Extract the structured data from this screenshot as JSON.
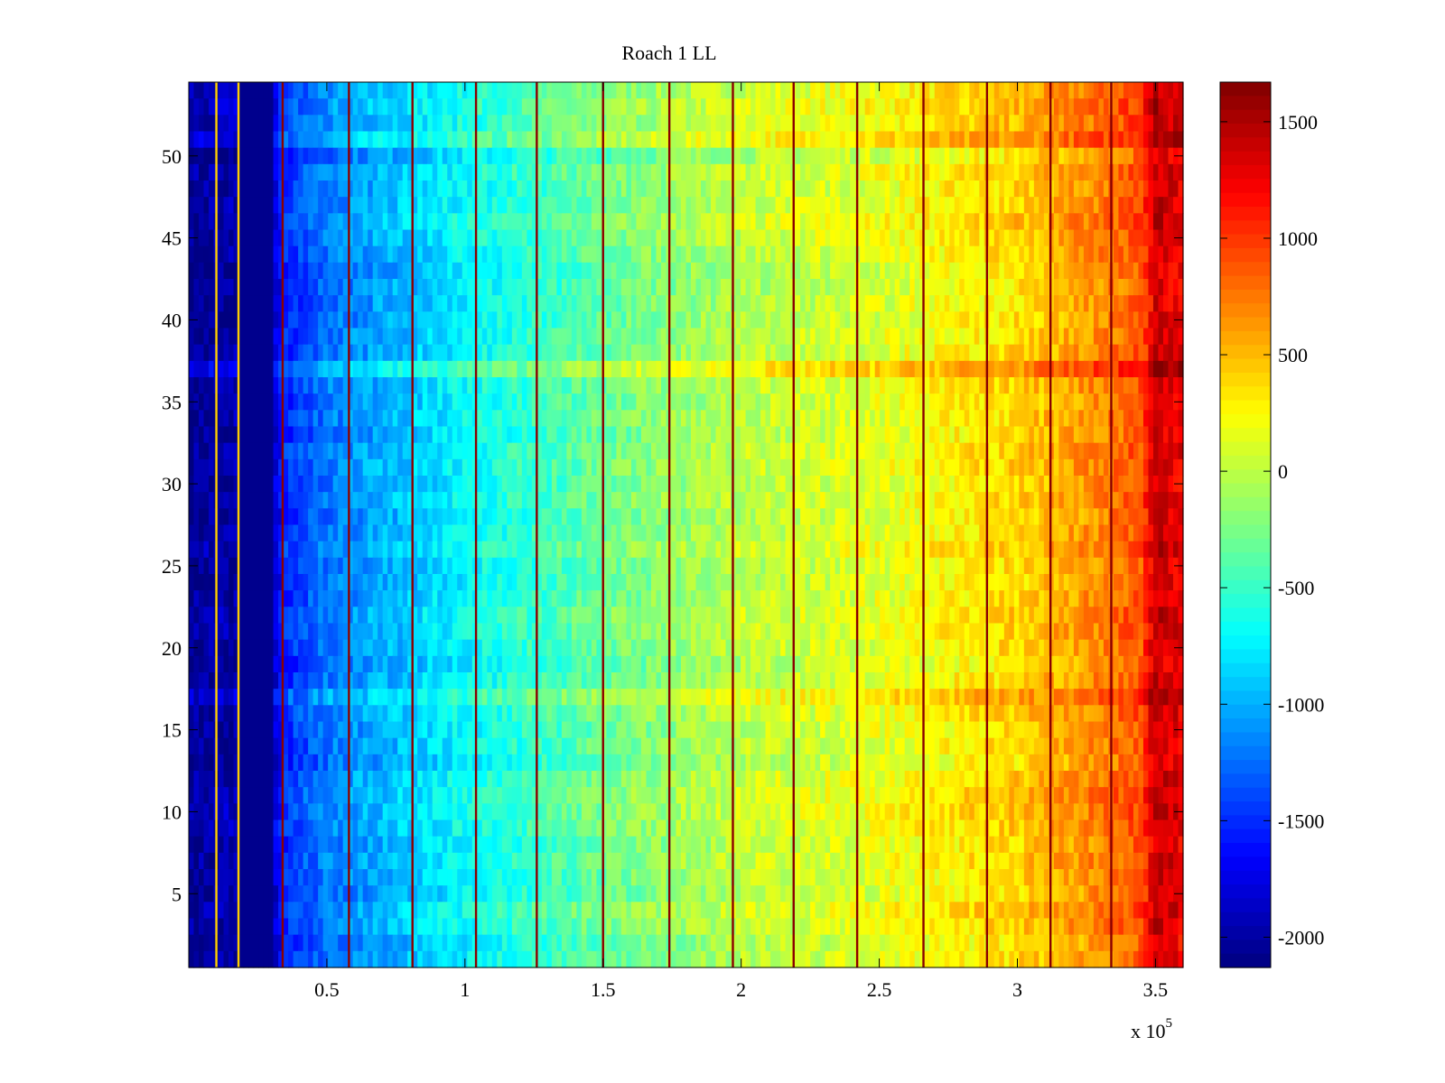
{
  "chart_data": {
    "type": "heatmap",
    "title": "Roach 1 LL",
    "xlabel": "",
    "ylabel": "",
    "x_multiplier_label": {
      "base": "x 10",
      "exponent": "5"
    },
    "xlim": [
      0,
      3.6
    ],
    "ylim": [
      0.5,
      54.5
    ],
    "x_ticks": [
      {
        "value": 0.5,
        "label": "0.5"
      },
      {
        "value": 1,
        "label": "1"
      },
      {
        "value": 1.5,
        "label": "1.5"
      },
      {
        "value": 2,
        "label": "2"
      },
      {
        "value": 2.5,
        "label": "2.5"
      },
      {
        "value": 3,
        "label": "3"
      },
      {
        "value": 3.5,
        "label": "3.5"
      }
    ],
    "y_ticks": [
      {
        "value": 5,
        "label": "5"
      },
      {
        "value": 10,
        "label": "10"
      },
      {
        "value": 15,
        "label": "15"
      },
      {
        "value": 20,
        "label": "20"
      },
      {
        "value": 25,
        "label": "25"
      },
      {
        "value": 30,
        "label": "30"
      },
      {
        "value": 35,
        "label": "35"
      },
      {
        "value": 40,
        "label": "40"
      },
      {
        "value": 45,
        "label": "45"
      },
      {
        "value": 50,
        "label": "50"
      }
    ],
    "n_rows": 54,
    "colormap": "jet",
    "colorbar": {
      "clim": [
        -2130,
        1670
      ],
      "ticks": [
        {
          "value": 1500,
          "label": "1500"
        },
        {
          "value": 1000,
          "label": "1000"
        },
        {
          "value": 500,
          "label": "500"
        },
        {
          "value": 0,
          "label": "0"
        },
        {
          "value": -500,
          "label": "-500"
        },
        {
          "value": -1000,
          "label": "-1000"
        },
        {
          "value": -1500,
          "label": "-1500"
        },
        {
          "value": -2000,
          "label": "-2000"
        }
      ]
    },
    "value_trend_by_x": [
      {
        "x": 0.0,
        "value": -2050
      },
      {
        "x": 0.3,
        "value": -1900
      },
      {
        "x": 0.35,
        "value": -1500
      },
      {
        "x": 0.5,
        "value": -1200
      },
      {
        "x": 0.8,
        "value": -900
      },
      {
        "x": 1.0,
        "value": -700
      },
      {
        "x": 1.5,
        "value": -300
      },
      {
        "x": 2.0,
        "value": 0
      },
      {
        "x": 2.5,
        "value": 150
      },
      {
        "x": 3.0,
        "value": 400
      },
      {
        "x": 3.3,
        "value": 700
      },
      {
        "x": 3.45,
        "value": 900
      },
      {
        "x": 3.5,
        "value": 1400
      },
      {
        "x": 3.6,
        "value": 1250
      }
    ],
    "dead_band_x": [
      0.18,
      0.3
    ],
    "hot_lines_x": [
      0.1,
      0.18,
      0.34,
      0.58,
      0.81,
      1.04,
      1.26,
      1.5,
      1.74,
      1.97,
      2.19,
      2.42,
      2.66,
      2.89,
      3.12,
      3.34
    ],
    "bright_rows": [
      18,
      38
    ]
  }
}
